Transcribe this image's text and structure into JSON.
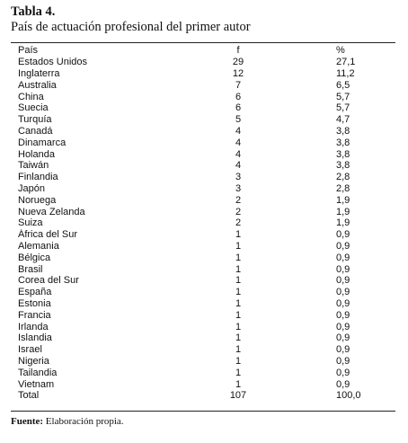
{
  "table_title": "Tabla 4.",
  "table_subtitle": "País de actuación profesional del primer autor",
  "columns": {
    "country": "País",
    "f": "f",
    "pct": "%"
  },
  "rows": [
    {
      "country": "Estados Unidos",
      "f": "29",
      "pct": "27,1"
    },
    {
      "country": "Inglaterra",
      "f": "12",
      "pct": "11,2"
    },
    {
      "country": "Australia",
      "f": "7",
      "pct": "6,5"
    },
    {
      "country": "China",
      "f": "6",
      "pct": "5,7"
    },
    {
      "country": "Suecia",
      "f": "6",
      "pct": "5,7"
    },
    {
      "country": "Turquía",
      "f": "5",
      "pct": "4,7"
    },
    {
      "country": "Canadá",
      "f": "4",
      "pct": "3,8"
    },
    {
      "country": "Dinamarca",
      "f": "4",
      "pct": "3,8"
    },
    {
      "country": "Holanda",
      "f": "4",
      "pct": "3,8"
    },
    {
      "country": "Taiwán",
      "f": "4",
      "pct": "3,8"
    },
    {
      "country": "Finlandia",
      "f": "3",
      "pct": "2,8"
    },
    {
      "country": "Japón",
      "f": "3",
      "pct": "2,8"
    },
    {
      "country": "Noruega",
      "f": "2",
      "pct": "1,9"
    },
    {
      "country": "Nueva Zelanda",
      "f": "2",
      "pct": "1,9"
    },
    {
      "country": "Suiza",
      "f": "2",
      "pct": "1,9"
    },
    {
      "country": "África del Sur",
      "f": "1",
      "pct": "0,9"
    },
    {
      "country": "Alemania",
      "f": "1",
      "pct": "0,9"
    },
    {
      "country": "Bélgica",
      "f": "1",
      "pct": "0,9"
    },
    {
      "country": "Brasil",
      "f": "1",
      "pct": "0,9"
    },
    {
      "country": "Corea del Sur",
      "f": "1",
      "pct": "0,9"
    },
    {
      "country": "España",
      "f": "1",
      "pct": "0,9"
    },
    {
      "country": "Estonia",
      "f": "1",
      "pct": "0,9"
    },
    {
      "country": "Francia",
      "f": "1",
      "pct": "0,9"
    },
    {
      "country": "Irlanda",
      "f": "1",
      "pct": "0,9"
    },
    {
      "country": "Islandia",
      "f": "1",
      "pct": "0,9"
    },
    {
      "country": "Israel",
      "f": "1",
      "pct": "0,9"
    },
    {
      "country": "Nigeria",
      "f": "1",
      "pct": "0,9"
    },
    {
      "country": "Tailandia",
      "f": "1",
      "pct": "0,9"
    },
    {
      "country": "Vietnam",
      "f": "1",
      "pct": "0,9"
    }
  ],
  "total": {
    "country": "Total",
    "f": "107",
    "pct": "100,0"
  },
  "source": {
    "label": "Fuente:",
    "text": "Elaboración propia."
  }
}
